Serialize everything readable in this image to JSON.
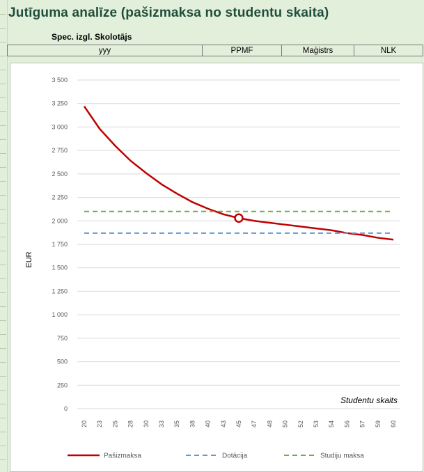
{
  "header": {
    "title": "Jutīguma analīze (pašizmaksa no studentu skaita)",
    "subtitle": "Spec. izgl. Skolotājs",
    "info_cells": [
      "yyy",
      "PPMF",
      "Maģistrs",
      "NLK"
    ]
  },
  "chart_data": {
    "type": "line",
    "title": "",
    "xlabel": "Studentu skaits",
    "ylabel": "EUR",
    "x": [
      20,
      23,
      25,
      28,
      30,
      33,
      35,
      38,
      40,
      43,
      45,
      47,
      48,
      50,
      52,
      53,
      54,
      56,
      57,
      59,
      60
    ],
    "ylim": [
      0,
      3500
    ],
    "yticks": [
      0,
      250,
      500,
      750,
      1000,
      1250,
      1500,
      1750,
      2000,
      2250,
      2500,
      2750,
      3000,
      3250,
      3500
    ],
    "ytick_labels": [
      "0",
      "250",
      "500",
      "750",
      "1 000",
      "1 250",
      "1 500",
      "1 750",
      "2 000",
      "2 250",
      "2 500",
      "2 750",
      "3 000",
      "3 250",
      "3 500"
    ],
    "grid": true,
    "legend_position": "bottom",
    "series": [
      {
        "name": "Pašizmaksa",
        "color": "#c00000",
        "style": "solid",
        "values": [
          3220,
          2980,
          2800,
          2640,
          2510,
          2390,
          2290,
          2200,
          2130,
          2070,
          2030,
          2000,
          1980,
          1960,
          1940,
          1920,
          1900,
          1870,
          1850,
          1820,
          1800
        ]
      },
      {
        "name": "Dotācija",
        "color": "#5b9bd5",
        "style": "dashed",
        "values": [
          1870,
          1870,
          1870,
          1870,
          1870,
          1870,
          1870,
          1870,
          1870,
          1870,
          1870,
          1870,
          1870,
          1870,
          1870,
          1870,
          1870,
          1870,
          1870,
          1870,
          1870
        ]
      },
      {
        "name": "Studiju maksa",
        "color": "#70ad47",
        "style": "dashed",
        "values": [
          2100,
          2100,
          2100,
          2100,
          2100,
          2100,
          2100,
          2100,
          2100,
          2100,
          2100,
          2100,
          2100,
          2100,
          2100,
          2100,
          2100,
          2100,
          2100,
          2100,
          2100
        ]
      }
    ],
    "highlight_point": {
      "series": "Pašizmaksa",
      "x": 45,
      "y": 2030
    }
  }
}
